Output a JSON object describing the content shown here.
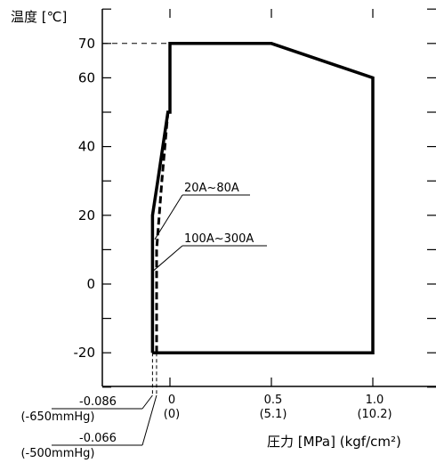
{
  "chart_data": {
    "type": "line",
    "ylabel": "温度 [℃]",
    "xlabel": "圧力 [MPa] (kgf/cm²)",
    "xlim": [
      -0.1,
      1.1
    ],
    "ylim": [
      -30,
      80
    ],
    "y_ticks": [
      {
        "value": -20,
        "label": "-20"
      },
      {
        "value": 0,
        "label": "0"
      },
      {
        "value": 20,
        "label": "20"
      },
      {
        "value": 40,
        "label": "40"
      },
      {
        "value": 60,
        "label": "60"
      },
      {
        "value": 70,
        "label": "70"
      }
    ],
    "y_minor_ticks": [
      -30,
      -10,
      10,
      30,
      50,
      80
    ],
    "x_ticks": [
      {
        "value": 0,
        "label": "0",
        "paren": "(0)"
      },
      {
        "value": 0.5,
        "label": "0.5",
        "paren": "(5.1)"
      },
      {
        "value": 1.0,
        "label": "1.0",
        "paren": "(10.2)"
      }
    ],
    "vacuum_marks": [
      {
        "value": -0.086,
        "label": "-0.086",
        "paren": "(-650mmHg)"
      },
      {
        "value": -0.066,
        "label": "-0.066",
        "paren": "(-500mmHg)"
      }
    ],
    "reference_line": {
      "y": 70
    },
    "series": [
      {
        "name": "20A~80A",
        "style": "solid",
        "x": [
          -0.086,
          -0.086,
          -0.06,
          -0.01,
          0,
          0,
          0.5,
          1.0,
          1.0,
          -0.086
        ],
        "y": [
          -20,
          20,
          30,
          50,
          50,
          70,
          70,
          60,
          -20,
          -20
        ]
      },
      {
        "name": "100A~300A",
        "style": "dashed",
        "x": [
          -0.066,
          -0.066,
          -0.04,
          -0.01
        ],
        "y": [
          -20,
          10,
          30,
          50
        ]
      }
    ],
    "annotations": [
      {
        "text": "20A~80A",
        "target_series": 0
      },
      {
        "text": "100A~300A",
        "target_series": 1
      }
    ]
  }
}
